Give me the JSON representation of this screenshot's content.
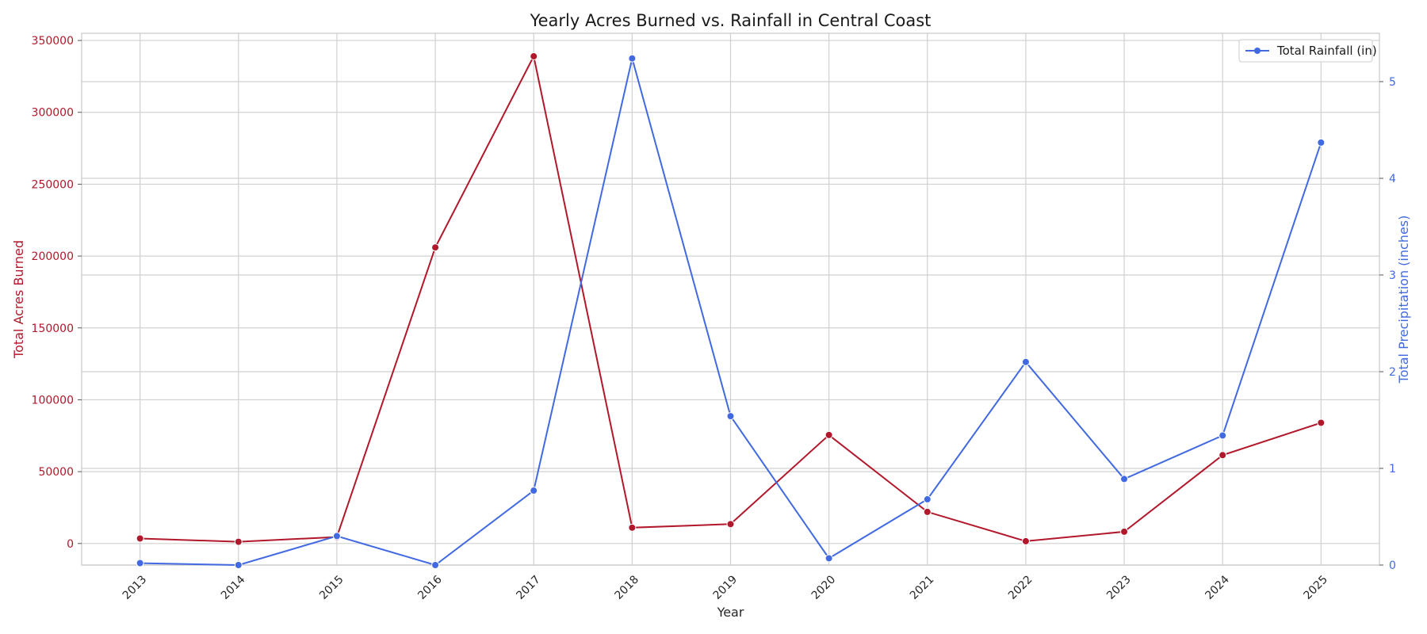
{
  "chart_data": {
    "type": "line",
    "title": "Yearly Acres Burned vs. Rainfall in Central Coast",
    "xlabel": "Year",
    "ylabel_left": "Total Acres Burned",
    "ylabel_right": "Total Precipitation (inches)",
    "x": [
      "2013",
      "2014",
      "2015",
      "2016",
      "2017",
      "2018",
      "2019",
      "2020",
      "2021",
      "2022",
      "2023",
      "2024",
      "2025"
    ],
    "ylim_left": [
      -15000,
      355000
    ],
    "yticks_left": [
      0,
      50000,
      100000,
      150000,
      200000,
      250000,
      300000,
      350000
    ],
    "ylim_right": [
      0,
      5.5
    ],
    "yticks_right": [
      0,
      1,
      2,
      3,
      4,
      5
    ],
    "grid": true,
    "legend_position": "top-right",
    "series": [
      {
        "axis": "left",
        "color": "#b2182b",
        "values": [
          3500,
          1200,
          4500,
          206000,
          339000,
          11000,
          13500,
          75500,
          22000,
          1600,
          8200,
          61500,
          84000
        ]
      },
      {
        "name": "Total Rainfall (in)",
        "axis": "right",
        "color": "#4169e1",
        "values": [
          0.02,
          0.0,
          0.3,
          0.0,
          0.77,
          5.24,
          1.54,
          0.07,
          0.68,
          2.1,
          0.89,
          1.34,
          4.37
        ]
      }
    ],
    "colors": {
      "left_axis": "#b2182b",
      "right_axis": "#4169e1",
      "grid": "#d0d0d0",
      "frame": "#c8c8c8"
    }
  }
}
